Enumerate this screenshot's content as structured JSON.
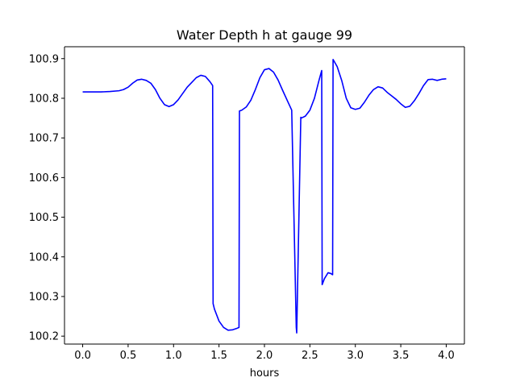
{
  "chart_data": {
    "type": "line",
    "title": "Water Depth h at gauge 99",
    "xlabel": "hours",
    "ylabel": "",
    "xlim": [
      -0.2,
      4.2
    ],
    "ylim": [
      100.18,
      100.93
    ],
    "grid": false,
    "xticks": [
      0.0,
      0.5,
      1.0,
      1.5,
      2.0,
      2.5,
      3.0,
      3.5,
      4.0
    ],
    "xtick_labels": [
      "0.0",
      "0.5",
      "1.0",
      "1.5",
      "2.0",
      "2.5",
      "3.0",
      "3.5",
      "4.0"
    ],
    "yticks": [
      100.2,
      100.3,
      100.4,
      100.5,
      100.6,
      100.7,
      100.8,
      100.9
    ],
    "ytick_labels": [
      "100.2",
      "100.3",
      "100.4",
      "100.5",
      "100.6",
      "100.7",
      "100.8",
      "100.9"
    ],
    "series": [
      {
        "color": "#0000ff",
        "x": [
          0.0,
          0.1,
          0.2,
          0.3,
          0.4,
          0.45,
          0.5,
          0.55,
          0.6,
          0.65,
          0.7,
          0.75,
          0.8,
          0.85,
          0.9,
          0.95,
          1.0,
          1.05,
          1.1,
          1.15,
          1.2,
          1.25,
          1.3,
          1.35,
          1.4,
          1.43,
          1.435,
          1.45,
          1.5,
          1.55,
          1.6,
          1.65,
          1.7,
          1.72,
          1.725,
          1.75,
          1.8,
          1.85,
          1.9,
          1.95,
          2.0,
          2.05,
          2.1,
          2.15,
          2.2,
          2.25,
          2.3,
          2.35,
          2.355,
          2.4,
          2.405,
          2.45,
          2.5,
          2.55,
          2.6,
          2.63,
          2.635,
          2.66,
          2.7,
          2.73,
          2.75,
          2.755,
          2.8,
          2.85,
          2.9,
          2.95,
          3.0,
          3.05,
          3.1,
          3.15,
          3.2,
          3.25,
          3.3,
          3.35,
          3.4,
          3.45,
          3.5,
          3.55,
          3.6,
          3.65,
          3.7,
          3.75,
          3.8,
          3.85,
          3.9,
          3.95,
          4.0
        ],
        "y": [
          100.816,
          100.816,
          100.816,
          100.817,
          100.819,
          100.822,
          100.828,
          100.838,
          100.846,
          100.848,
          100.845,
          100.838,
          100.822,
          100.8,
          100.784,
          100.779,
          100.784,
          100.796,
          100.812,
          100.828,
          100.84,
          100.852,
          100.858,
          100.855,
          100.842,
          100.832,
          100.282,
          100.268,
          100.238,
          100.222,
          100.215,
          100.216,
          100.22,
          100.222,
          100.768,
          100.77,
          100.778,
          100.795,
          100.822,
          100.852,
          100.872,
          100.875,
          100.866,
          100.846,
          100.82,
          100.795,
          100.77,
          100.222,
          100.208,
          100.752,
          100.75,
          100.755,
          100.77,
          100.8,
          100.845,
          100.87,
          100.33,
          100.345,
          100.36,
          100.358,
          100.355,
          100.898,
          100.88,
          100.845,
          100.8,
          100.776,
          100.772,
          100.775,
          100.79,
          100.808,
          100.822,
          100.829,
          100.826,
          100.815,
          100.806,
          100.797,
          100.786,
          100.777,
          100.78,
          100.794,
          100.812,
          100.832,
          100.847,
          100.848,
          100.845,
          100.848,
          100.849
        ]
      }
    ]
  }
}
